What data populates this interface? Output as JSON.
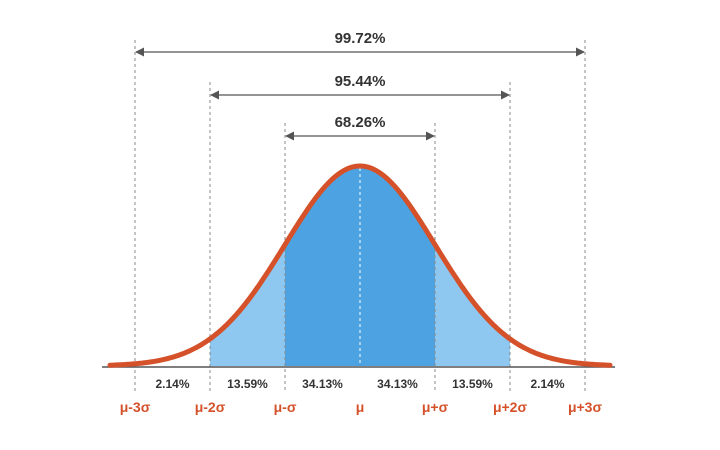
{
  "colors": {
    "curve": "#d4512a",
    "inner_band": "#4da3e2",
    "outer_band": "#8ec7f0",
    "sigma_label": "#d4512a",
    "guide": "#8a8a8a",
    "axis": "#555555"
  },
  "ranges": [
    {
      "label": "99.72%",
      "from_sigma": -3,
      "to_sigma": 3
    },
    {
      "label": "95.44%",
      "from_sigma": -2,
      "to_sigma": 2
    },
    {
      "label": "68.26%",
      "from_sigma": -1,
      "to_sigma": 1
    }
  ],
  "segments": [
    {
      "label": "2.14%",
      "from_sigma": -3,
      "to_sigma": -2
    },
    {
      "label": "13.59%",
      "from_sigma": -2,
      "to_sigma": -1
    },
    {
      "label": "34.13%",
      "from_sigma": -1,
      "to_sigma": 0
    },
    {
      "label": "34.13%",
      "from_sigma": 0,
      "to_sigma": 1
    },
    {
      "label": "13.59%",
      "from_sigma": 1,
      "to_sigma": 2
    },
    {
      "label": "2.14%",
      "from_sigma": 2,
      "to_sigma": 3
    }
  ],
  "sigma_ticks": [
    {
      "label": "μ-3σ",
      "sigma": -3
    },
    {
      "label": "μ-2σ",
      "sigma": -2
    },
    {
      "label": "μ-σ",
      "sigma": -1
    },
    {
      "label": "μ",
      "sigma": 0
    },
    {
      "label": "μ+σ",
      "sigma": 1
    },
    {
      "label": "μ+2σ",
      "sigma": 2
    },
    {
      "label": "μ+3σ",
      "sigma": 3
    }
  ]
}
